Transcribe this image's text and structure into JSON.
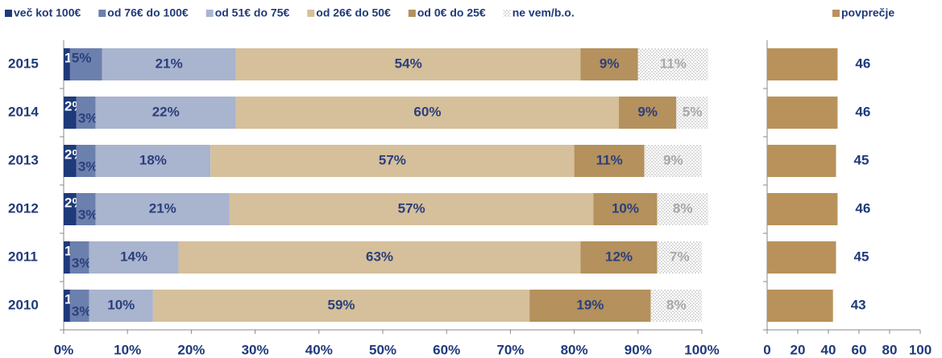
{
  "chart_data": [
    {
      "type": "stacked-bar-horizontal",
      "categories": [
        "2015",
        "2014",
        "2013",
        "2012",
        "2011",
        "2010"
      ],
      "series": [
        {
          "name": "več kot 100€",
          "color": "#1f3a7a",
          "values": [
            1,
            2,
            2,
            2,
            1,
            1
          ],
          "value_labels": [
            "1%",
            "2%",
            "2%",
            "2%",
            "1%",
            "1%"
          ]
        },
        {
          "name": "od 76€ do 100€",
          "color": "#6c80ae",
          "values": [
            5,
            3,
            3,
            3,
            3,
            3
          ],
          "value_labels": [
            "5%",
            "3%",
            "3%",
            "3%",
            "3%",
            "3%"
          ]
        },
        {
          "name": "od 51€ do 75€",
          "color": "#a9b4cf",
          "values": [
            21,
            22,
            18,
            21,
            14,
            10
          ],
          "value_labels": [
            "21%",
            "22%",
            "18%",
            "21%",
            "14%",
            "10%"
          ]
        },
        {
          "name": "od 26€ do 50€",
          "color": "#d5c09b",
          "values": [
            54,
            60,
            57,
            57,
            63,
            59
          ],
          "value_labels": [
            "54%",
            "60%",
            "57%",
            "57%",
            "63%",
            "59%"
          ]
        },
        {
          "name": "od 0€ do 25€",
          "color": "#b4915d",
          "values": [
            9,
            9,
            11,
            10,
            12,
            19
          ],
          "value_labels": [
            "9%",
            "9%",
            "11%",
            "10%",
            "12%",
            "19%"
          ]
        },
        {
          "name": "ne vem/b.o.",
          "color": "dotted",
          "values": [
            11,
            5,
            9,
            8,
            7,
            8
          ],
          "value_labels": [
            "11%",
            "5%",
            "9%",
            "8%",
            "7%",
            "8%"
          ]
        }
      ],
      "xlim": [
        0,
        100
      ],
      "xticks": [
        {
          "value": 0,
          "label": "0%"
        },
        {
          "value": 10,
          "label": "10%"
        },
        {
          "value": 20,
          "label": "20%"
        },
        {
          "value": 30,
          "label": "30%"
        },
        {
          "value": 40,
          "label": "40%"
        },
        {
          "value": 50,
          "label": "50%"
        },
        {
          "value": 60,
          "label": "60%"
        },
        {
          "value": 70,
          "label": "70%"
        },
        {
          "value": 80,
          "label": "80%"
        },
        {
          "value": 90,
          "label": "90%"
        },
        {
          "value": 100,
          "label": "100%"
        }
      ]
    },
    {
      "type": "bar-horizontal",
      "categories": [
        "2015",
        "2014",
        "2013",
        "2012",
        "2011",
        "2010"
      ],
      "series": [
        {
          "name": "povprečje",
          "color": "#b8925a",
          "values": [
            46,
            46,
            45,
            46,
            45,
            43
          ]
        }
      ],
      "xlim": [
        0,
        100
      ],
      "xticks": [
        0,
        20,
        40,
        60,
        80,
        100
      ]
    }
  ]
}
